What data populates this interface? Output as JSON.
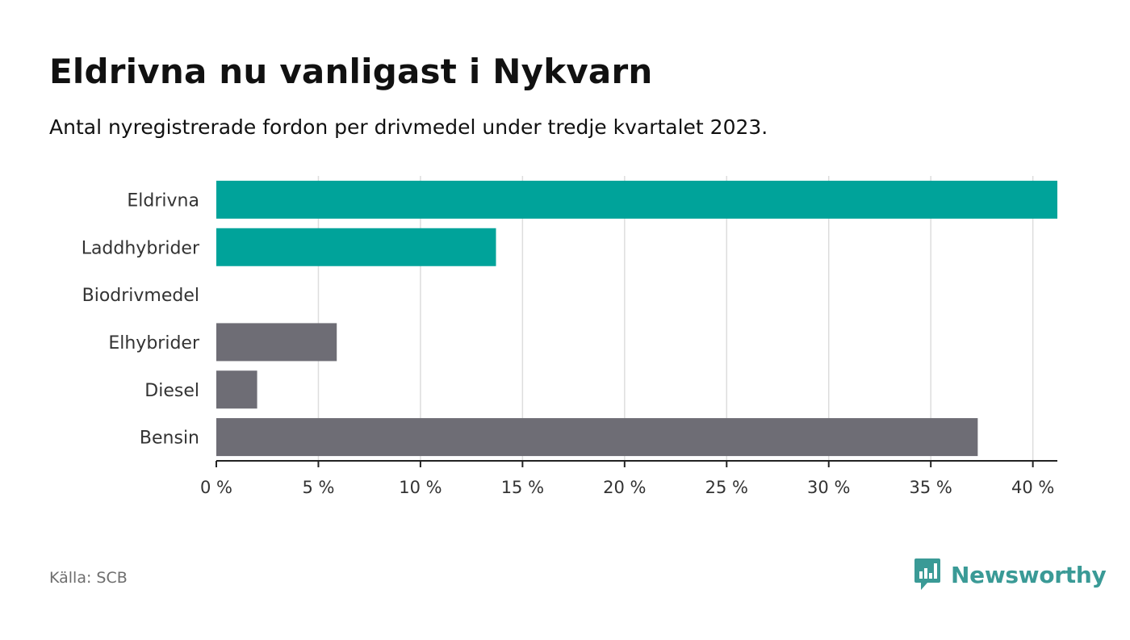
{
  "header": {
    "title": "Eldrivna nu vanligast i Nykvarn",
    "subtitle": "Antal nyregistrerade fordon per drivmedel under tredje kvartalet 2023."
  },
  "footer": {
    "source": "Källa: SCB",
    "brand": "Newsworthy"
  },
  "colors": {
    "highlight": "#00a39a",
    "default": "#6e6d75",
    "grid": "#dddddd",
    "axis": "#222222",
    "brand": "#3a9a96"
  },
  "chart_data": {
    "type": "bar",
    "orientation": "horizontal",
    "categories": [
      "Eldrivna",
      "Laddhybrider",
      "Biodrivmedel",
      "Elhybrider",
      "Diesel",
      "Bensin"
    ],
    "values": [
      41.2,
      13.7,
      0,
      5.9,
      2.0,
      37.3
    ],
    "highlighted": [
      true,
      true,
      false,
      false,
      false,
      false
    ],
    "xlim": [
      0,
      41.2
    ],
    "xticks": [
      0,
      5,
      10,
      15,
      20,
      25,
      30,
      35,
      40
    ],
    "xtick_labels": [
      "0 %",
      "5 %",
      "10 %",
      "15 %",
      "20 %",
      "25 %",
      "30 %",
      "35 %",
      "40 %"
    ],
    "grid": true,
    "legend": "none"
  }
}
